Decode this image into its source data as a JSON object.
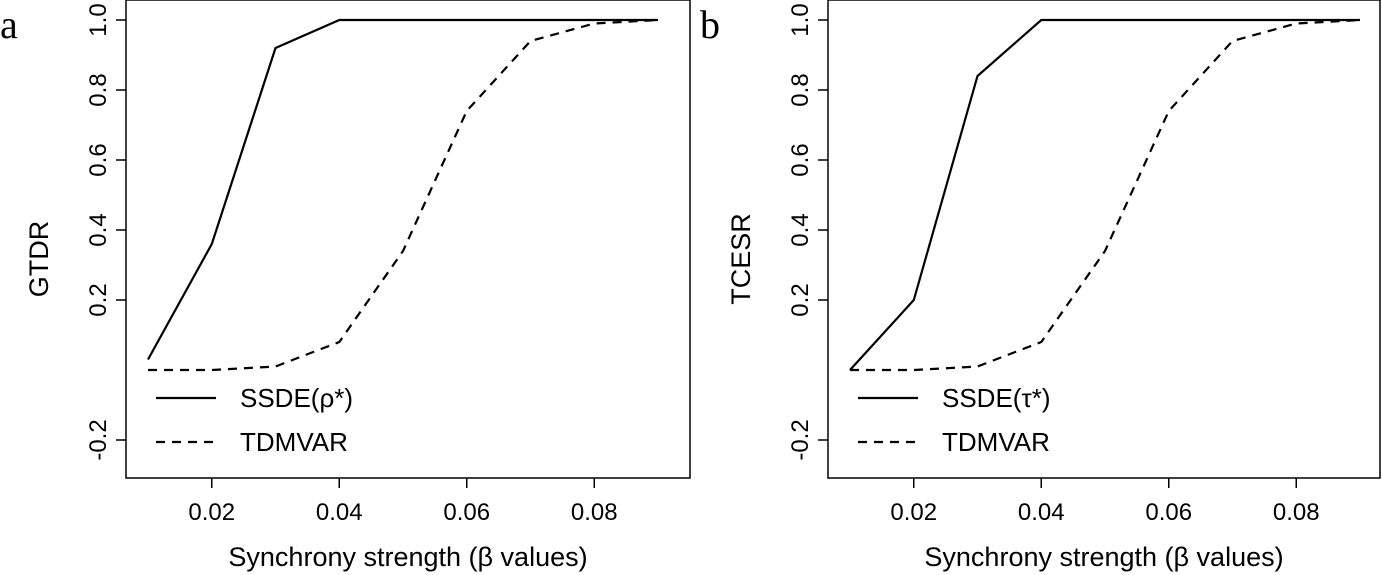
{
  "chart_data": [
    {
      "type": "line",
      "panel_label": "a",
      "xlabel": "Synchrony strength (β values)",
      "ylabel": "GTDR",
      "xlim": [
        0.01,
        0.09
      ],
      "ylim": [
        -0.2,
        1.0
      ],
      "x_ticks": [
        "0.02",
        "0.04",
        "0.06",
        "0.08"
      ],
      "x_tick_values": [
        0.02,
        0.04,
        0.06,
        0.08
      ],
      "y_ticks": [
        "-0.2",
        "0.2",
        "0.4",
        "0.6",
        "0.8",
        "1.0"
      ],
      "y_tick_values": [
        -0.2,
        0.2,
        0.4,
        0.6,
        0.8,
        1.0
      ],
      "legend_position": "bottom-left",
      "series": [
        {
          "name": "SSDE(ρ*)",
          "style": "solid",
          "x": [
            0.01,
            0.02,
            0.03,
            0.04,
            0.05,
            0.06,
            0.07,
            0.08,
            0.09
          ],
          "y": [
            0.03,
            0.36,
            0.92,
            1.0,
            1.0,
            1.0,
            1.0,
            1.0,
            1.0
          ]
        },
        {
          "name": "TDMVAR",
          "style": "dashed",
          "x": [
            0.01,
            0.02,
            0.03,
            0.04,
            0.05,
            0.06,
            0.07,
            0.08,
            0.09
          ],
          "y": [
            0.0,
            0.0,
            0.01,
            0.08,
            0.34,
            0.74,
            0.94,
            0.99,
            1.0
          ]
        }
      ]
    },
    {
      "type": "line",
      "panel_label": "b",
      "xlabel": "Synchrony strength (β values)",
      "ylabel": "TCESR",
      "xlim": [
        0.01,
        0.09
      ],
      "ylim": [
        -0.2,
        1.0
      ],
      "x_ticks": [
        "0.02",
        "0.04",
        "0.06",
        "0.08"
      ],
      "x_tick_values": [
        0.02,
        0.04,
        0.06,
        0.08
      ],
      "y_ticks": [
        "-0.2",
        "0.2",
        "0.4",
        "0.6",
        "0.8",
        "1.0"
      ],
      "y_tick_values": [
        -0.2,
        0.2,
        0.4,
        0.6,
        0.8,
        1.0
      ],
      "legend_position": "bottom-left",
      "series": [
        {
          "name": "SSDE(τ*)",
          "style": "solid",
          "x": [
            0.01,
            0.02,
            0.03,
            0.04,
            0.05,
            0.06,
            0.07,
            0.08,
            0.09
          ],
          "y": [
            0.0,
            0.2,
            0.84,
            1.0,
            1.0,
            1.0,
            1.0,
            1.0,
            1.0
          ]
        },
        {
          "name": "TDMVAR",
          "style": "dashed",
          "x": [
            0.01,
            0.02,
            0.03,
            0.04,
            0.05,
            0.06,
            0.07,
            0.08,
            0.09
          ],
          "y": [
            0.0,
            0.0,
            0.01,
            0.08,
            0.34,
            0.74,
            0.94,
            0.99,
            1.0
          ]
        }
      ]
    }
  ]
}
